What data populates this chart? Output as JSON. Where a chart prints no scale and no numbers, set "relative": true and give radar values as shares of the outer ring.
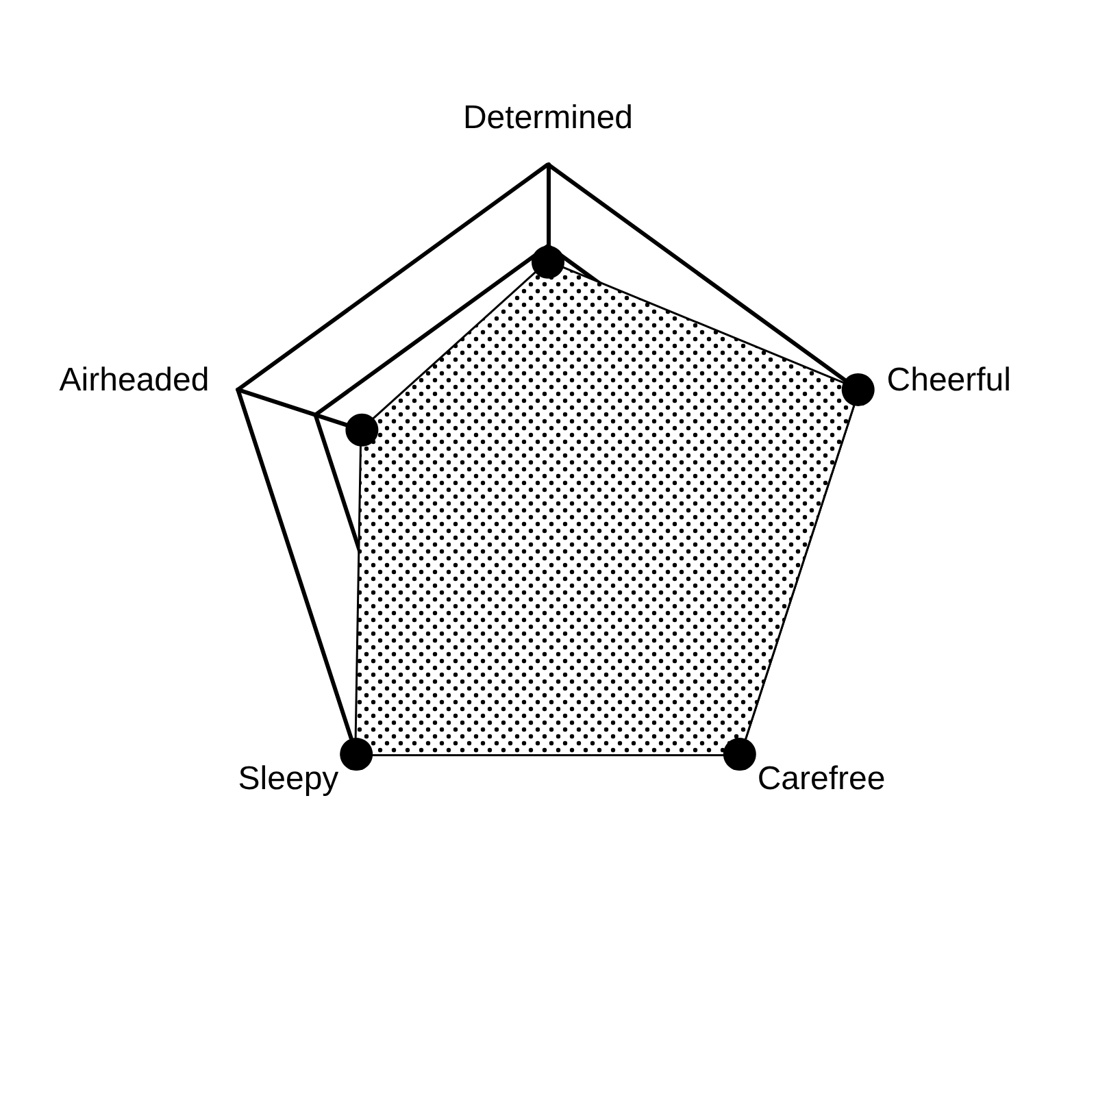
{
  "chart_data": {
    "type": "radar",
    "relative": true,
    "categories": [
      "Determined",
      "Cheerful",
      "Carefree",
      "Sleepy",
      "Airheaded"
    ],
    "marker": "circle",
    "series": [
      {
        "color": "#000000",
        "values": [
          0.7,
          1,
          1,
          1,
          0.6
        ]
      }
    ]
  }
}
